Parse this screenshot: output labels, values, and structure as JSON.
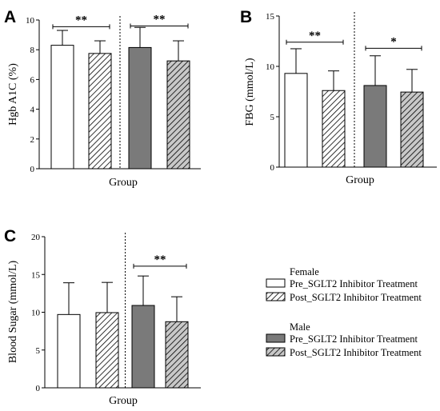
{
  "colors": {
    "female_pre": "#ffffff",
    "female_post": "hatch-white",
    "male_pre": "#7a7a7a",
    "male_post": "hatch-gray",
    "axis": "#000000"
  },
  "legend": {
    "female_heading": "Female",
    "male_heading": "Male",
    "items": [
      {
        "label": "Pre_SGLT2 Inhibitor Treatment",
        "style": "female_pre"
      },
      {
        "label": "Post_SGLT2 Inhibitor Treatment",
        "style": "female_post"
      },
      {
        "label": "Pre_SGLT2 Inhibitor Treatment",
        "style": "male_pre"
      },
      {
        "label": "Post_SGLT2 Inhibitor Treatment",
        "style": "male_post"
      }
    ]
  },
  "chart_data": [
    {
      "panel": "A",
      "type": "bar",
      "xlabel": "Group",
      "ylabel": "Hgb A1C (%)",
      "ylim": [
        0,
        10
      ],
      "yticks": [
        "0",
        "2",
        "4",
        "6",
        "8",
        "10"
      ],
      "values": [
        8.3,
        7.75,
        8.15,
        7.25
      ],
      "errors": [
        1.0,
        0.85,
        1.35,
        1.35
      ],
      "significance": [
        {
          "from": 0,
          "to": 1,
          "label": "**",
          "y": 9.55
        },
        {
          "from": 2,
          "to": 3,
          "label": "**",
          "y": 9.6
        }
      ]
    },
    {
      "panel": "B",
      "type": "bar",
      "xlabel": "Group",
      "ylabel": "FBG (mmol/L)",
      "ylim": [
        0,
        15
      ],
      "yticks": [
        "0",
        "5",
        "10",
        "15"
      ],
      "values": [
        9.3,
        7.6,
        8.1,
        7.45
      ],
      "errors": [
        2.45,
        1.95,
        2.95,
        2.25
      ],
      "significance": [
        {
          "from": 0,
          "to": 1,
          "label": "**",
          "y": 12.4
        },
        {
          "from": 2,
          "to": 3,
          "label": "*",
          "y": 11.8
        }
      ]
    },
    {
      "panel": "C",
      "type": "bar",
      "xlabel": "Group",
      "ylabel": "Blood Sugar (mmol/L)",
      "ylim": [
        0,
        20
      ],
      "yticks": [
        "0",
        "5",
        "10",
        "15",
        "20"
      ],
      "values": [
        9.7,
        9.95,
        10.9,
        8.75
      ],
      "errors": [
        4.2,
        4.0,
        3.9,
        3.3
      ],
      "significance": [
        {
          "from": 2,
          "to": 3,
          "label": "**",
          "y": 16.1
        }
      ]
    }
  ]
}
